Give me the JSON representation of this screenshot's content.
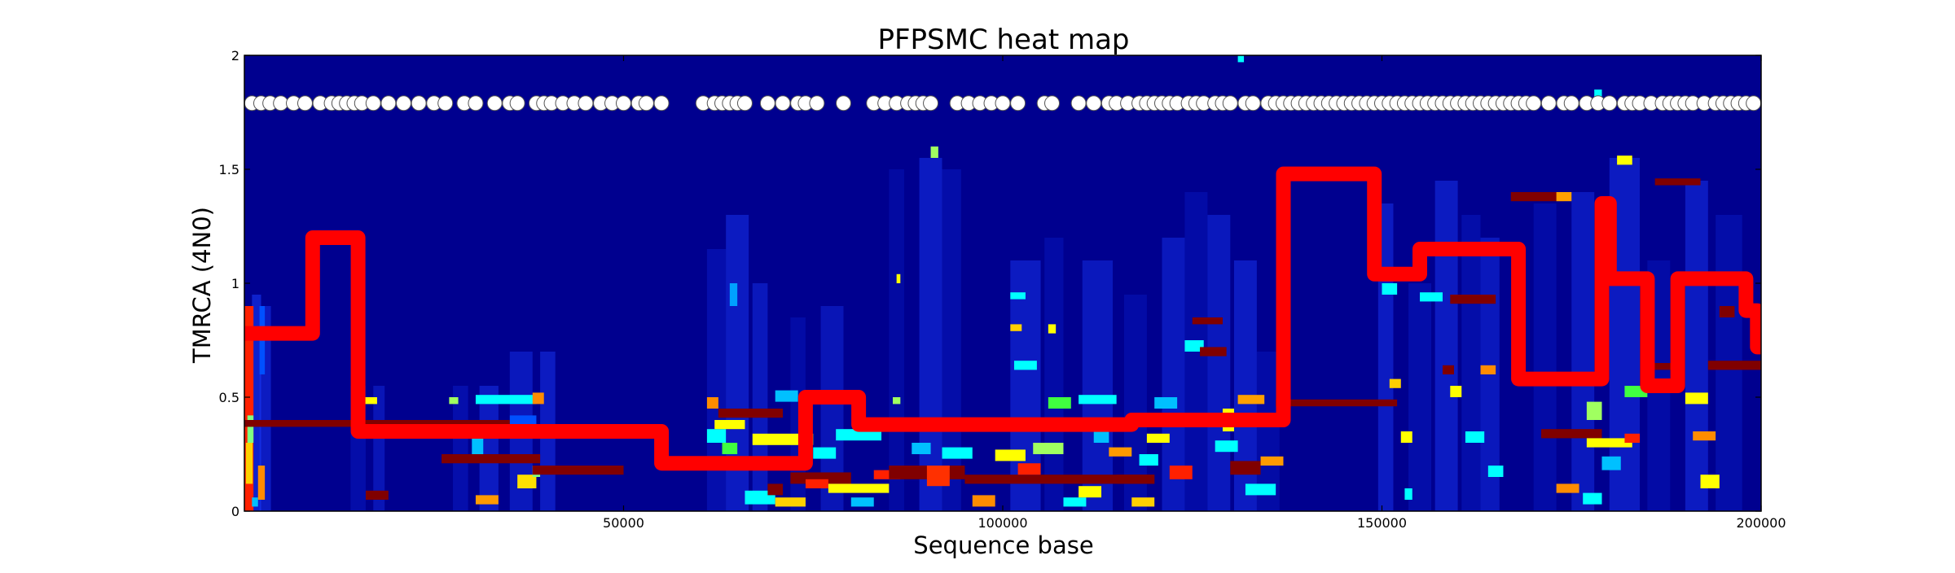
{
  "chart_data": {
    "type": "heatmap",
    "title": "PFPSMC heat map",
    "xlabel": "Sequence base",
    "ylabel": "TMRCA (4N0)",
    "xlim": [
      0,
      200000
    ],
    "ylim": [
      0,
      2
    ],
    "x_ticks": [
      {
        "value": 50000,
        "label": "50000"
      },
      {
        "value": 100000,
        "label": "100000"
      },
      {
        "value": 150000,
        "label": "150000"
      },
      {
        "value": 200000,
        "label": "200000"
      }
    ],
    "y_ticks": [
      {
        "value": 0,
        "label": "0"
      },
      {
        "value": 0.5,
        "label": "0.5"
      },
      {
        "value": 1,
        "label": "1"
      },
      {
        "value": 1.5,
        "label": "1.5"
      },
      {
        "value": 2,
        "label": "2"
      }
    ],
    "colors": {
      "heatmap_background": "#00008f",
      "tmrca_line": "#ff0000",
      "site_markers": "#ffffff",
      "hot": "#800000"
    },
    "grid": false,
    "legend": "none",
    "tmrca_path": [
      [
        0,
        0.78
      ],
      [
        9000,
        0.78
      ],
      [
        9000,
        1.2
      ],
      [
        15000,
        1.2
      ],
      [
        15000,
        0.35
      ],
      [
        55000,
        0.35
      ],
      [
        55000,
        0.21
      ],
      [
        74000,
        0.21
      ],
      [
        74000,
        0.5
      ],
      [
        81000,
        0.5
      ],
      [
        81000,
        0.38
      ],
      [
        117000,
        0.38
      ],
      [
        117000,
        0.4
      ],
      [
        137000,
        0.4
      ],
      [
        137000,
        1.48
      ],
      [
        149000,
        1.48
      ],
      [
        149000,
        1.04
      ],
      [
        155000,
        1.04
      ],
      [
        155000,
        1.15
      ],
      [
        168000,
        1.15
      ],
      [
        168000,
        0.58
      ],
      [
        179000,
        0.58
      ],
      [
        179000,
        1.35
      ],
      [
        180000,
        1.35
      ],
      [
        180000,
        1.02
      ],
      [
        185000,
        1.02
      ],
      [
        185000,
        0.55
      ],
      [
        189000,
        0.55
      ],
      [
        189000,
        1.02
      ],
      [
        198000,
        1.02
      ],
      [
        198000,
        0.88
      ],
      [
        199500,
        0.88
      ],
      [
        199500,
        0.72
      ],
      [
        200000,
        0.72
      ]
    ],
    "site_markers_y": 1.79,
    "site_positions": [
      1000,
      2200,
      3400,
      4800,
      6500,
      8000,
      10000,
      11500,
      12500,
      13500,
      14500,
      15500,
      17000,
      19000,
      21000,
      23000,
      25000,
      26500,
      29000,
      30500,
      33000,
      35000,
      36000,
      38500,
      39500,
      40500,
      42000,
      43500,
      45000,
      47000,
      48500,
      50000,
      52000,
      53000,
      55000,
      60500,
      62000,
      63000,
      64000,
      65000,
      66000,
      69000,
      71000,
      73000,
      74000,
      75500,
      79000,
      83000,
      84500,
      86000,
      87500,
      88500,
      89500,
      90500,
      94000,
      95500,
      97000,
      98500,
      100000,
      102000,
      105500,
      106500,
      110000,
      112000,
      114000,
      115000,
      116500,
      118000,
      119000,
      120000,
      121000,
      122000,
      123000,
      124500,
      125500,
      126500,
      128000,
      129000,
      130000,
      132000,
      133000,
      135000,
      136000,
      137000,
      138000,
      139000,
      140000,
      141000,
      142000,
      143000,
      144000,
      145000,
      146000,
      147000,
      148000,
      149000,
      150000,
      151000,
      152000,
      153000,
      154000,
      155000,
      156000,
      157000,
      158000,
      159000,
      160000,
      161000,
      162000,
      163000,
      164000,
      165000,
      166000,
      167000,
      168000,
      169000,
      170000,
      172000,
      174000,
      175000,
      177000,
      178500,
      180000,
      182000,
      183000,
      184000,
      185500,
      187000,
      188000,
      189000,
      190000,
      191000,
      192500,
      194000,
      195000,
      196000,
      197000,
      198000,
      199000
    ],
    "column_streaks": [
      [
        1000,
        1200,
        0.0,
        0.95,
        "#1a3cff",
        0.55
      ],
      [
        2000,
        1500,
        0.0,
        0.9,
        "#1a3cff",
        0.45
      ],
      [
        14000,
        2000,
        0.0,
        0.55,
        "#0a20d0",
        0.4
      ],
      [
        17000,
        1500,
        0.0,
        0.55,
        "#1a3cff",
        0.35
      ],
      [
        27500,
        2000,
        0.0,
        0.55,
        "#0a20d0",
        0.45
      ],
      [
        31000,
        2500,
        0.0,
        0.55,
        "#1a3cff",
        0.45
      ],
      [
        35000,
        3000,
        0.0,
        0.7,
        "#1a3cff",
        0.4
      ],
      [
        39000,
        2000,
        0.0,
        0.7,
        "#1a3cff",
        0.45
      ],
      [
        61000,
        2500,
        0.0,
        1.15,
        "#0a20d0",
        0.45
      ],
      [
        63500,
        3000,
        0.0,
        1.3,
        "#1a3cff",
        0.45
      ],
      [
        67000,
        2000,
        0.0,
        1.0,
        "#1a3cff",
        0.4
      ],
      [
        72000,
        2000,
        0.0,
        0.85,
        "#0a20d0",
        0.35
      ],
      [
        76000,
        3000,
        0.0,
        0.9,
        "#1a3cff",
        0.35
      ],
      [
        85000,
        2000,
        0.0,
        1.5,
        "#0a20d0",
        0.3
      ],
      [
        89000,
        3000,
        0.0,
        1.55,
        "#1a3cff",
        0.45
      ],
      [
        92000,
        2500,
        0.0,
        1.5,
        "#0a20d0",
        0.4
      ],
      [
        101000,
        4000,
        0.0,
        1.1,
        "#1a3cff",
        0.45
      ],
      [
        105500,
        2500,
        0.0,
        1.2,
        "#0a20d0",
        0.35
      ],
      [
        110500,
        4000,
        0.0,
        1.1,
        "#1a3cff",
        0.4
      ],
      [
        116000,
        3000,
        0.0,
        0.95,
        "#0a20d0",
        0.35
      ],
      [
        121000,
        3000,
        0.0,
        1.2,
        "#1a3cff",
        0.4
      ],
      [
        124000,
        3000,
        0.0,
        1.4,
        "#0a20d0",
        0.35
      ],
      [
        127000,
        3000,
        0.0,
        1.3,
        "#1a3cff",
        0.4
      ],
      [
        130500,
        3000,
        0.0,
        1.1,
        "#1a3cff",
        0.45
      ],
      [
        133500,
        3000,
        0.0,
        0.7,
        "#0a20d0",
        0.35
      ],
      [
        149500,
        2000,
        0.0,
        1.35,
        "#1a3cff",
        0.45
      ],
      [
        153500,
        3000,
        0.0,
        1.0,
        "#0a20d0",
        0.4
      ],
      [
        157000,
        3000,
        0.0,
        1.45,
        "#1a3cff",
        0.45
      ],
      [
        160500,
        2500,
        0.0,
        1.3,
        "#0a20d0",
        0.4
      ],
      [
        163000,
        2500,
        0.0,
        1.2,
        "#1a3cff",
        0.4
      ],
      [
        170000,
        3000,
        0.0,
        1.35,
        "#0a20d0",
        0.35
      ],
      [
        175000,
        3000,
        0.0,
        1.4,
        "#1a3cff",
        0.4
      ],
      [
        180000,
        4000,
        0.0,
        1.55,
        "#1a3cff",
        0.45
      ],
      [
        185000,
        3000,
        0.0,
        1.1,
        "#0a20d0",
        0.35
      ],
      [
        190000,
        3000,
        0.0,
        1.45,
        "#1a3cff",
        0.45
      ],
      [
        194000,
        3500,
        0.0,
        1.3,
        "#0a20d0",
        0.4
      ]
    ],
    "cells": [
      [
        0,
        1200,
        0.0,
        0.9,
        "#ff2000"
      ],
      [
        200,
        900,
        0.12,
        0.3,
        "#ffd000"
      ],
      [
        400,
        800,
        0.3,
        0.42,
        "#80ff80"
      ],
      [
        1000,
        800,
        0.02,
        0.06,
        "#00c0ff"
      ],
      [
        1800,
        900,
        0.05,
        0.2,
        "#ff8c00"
      ],
      [
        2000,
        700,
        0.6,
        0.9,
        "#0050ff"
      ],
      [
        0,
        37000,
        0.37,
        0.4,
        "#800000"
      ],
      [
        15000,
        2500,
        0.47,
        0.5,
        "#ffff00"
      ],
      [
        16000,
        3000,
        0.05,
        0.09,
        "#800000"
      ],
      [
        26000,
        13000,
        0.21,
        0.25,
        "#800000"
      ],
      [
        27000,
        1200,
        0.47,
        0.5,
        "#a0ff60"
      ],
      [
        30500,
        8000,
        0.47,
        0.51,
        "#00ffff"
      ],
      [
        30000,
        1500,
        0.25,
        0.32,
        "#00c0ff"
      ],
      [
        30500,
        3000,
        0.03,
        0.07,
        "#ff9a00"
      ],
      [
        35000,
        3500,
        0.37,
        0.42,
        "#0050ff"
      ],
      [
        36000,
        2500,
        0.1,
        0.16,
        "#ffe000"
      ],
      [
        38000,
        1000,
        0.15,
        0.2,
        "#80ff80"
      ],
      [
        38000,
        1500,
        0.47,
        0.52,
        "#ff8c00"
      ],
      [
        38000,
        12000,
        0.16,
        0.2,
        "#800000"
      ],
      [
        61000,
        1500,
        0.45,
        0.5,
        "#ff8c00"
      ],
      [
        61000,
        2500,
        0.3,
        0.36,
        "#00ffff"
      ],
      [
        62500,
        8500,
        0.41,
        0.45,
        "#800000"
      ],
      [
        62000,
        4000,
        0.36,
        0.4,
        "#ffff00"
      ],
      [
        63000,
        2000,
        0.25,
        0.3,
        "#40ff40"
      ],
      [
        64000,
        1000,
        0.9,
        1.0,
        "#00a0ff"
      ],
      [
        66000,
        3500,
        0.2,
        0.24,
        "#ffa000"
      ],
      [
        66000,
        4000,
        0.03,
        0.09,
        "#00ffff"
      ],
      [
        67000,
        8000,
        0.29,
        0.34,
        "#ffff00"
      ],
      [
        69000,
        2000,
        0.07,
        0.12,
        "#800000"
      ],
      [
        70000,
        3000,
        0.48,
        0.53,
        "#00c0ff"
      ],
      [
        70000,
        4000,
        0.02,
        0.06,
        "#ffd000"
      ],
      [
        72000,
        8000,
        0.12,
        0.17,
        "#800000"
      ],
      [
        74000,
        3000,
        0.1,
        0.14,
        "#ff2000"
      ],
      [
        75000,
        3000,
        0.23,
        0.28,
        "#00ffff"
      ],
      [
        77000,
        8000,
        0.08,
        0.12,
        "#ffff00"
      ],
      [
        78000,
        6000,
        0.31,
        0.36,
        "#00ffff"
      ],
      [
        80000,
        3000,
        0.02,
        0.06,
        "#00c0ff"
      ],
      [
        83000,
        3500,
        0.14,
        0.18,
        "#ff2000"
      ],
      [
        85000,
        10000,
        0.14,
        0.2,
        "#800000"
      ],
      [
        85500,
        1000,
        0.47,
        0.5,
        "#a0ff60"
      ],
      [
        86000,
        500,
        1.0,
        1.04,
        "#ffff00"
      ],
      [
        88000,
        2500,
        0.25,
        0.3,
        "#00c0ff"
      ],
      [
        90000,
        3000,
        0.11,
        0.2,
        "#ff3000"
      ],
      [
        90500,
        1000,
        1.55,
        1.6,
        "#a0ff60"
      ],
      [
        92000,
        4000,
        0.23,
        0.28,
        "#00ffff"
      ],
      [
        95000,
        25000,
        0.12,
        0.16,
        "#800000"
      ],
      [
        96000,
        3000,
        0.02,
        0.07,
        "#ff8c00"
      ],
      [
        99000,
        4000,
        0.22,
        0.27,
        "#ffff00"
      ],
      [
        101000,
        2000,
        0.93,
        0.96,
        "#00ffff"
      ],
      [
        101000,
        1500,
        0.79,
        0.82,
        "#ffd000"
      ],
      [
        101500,
        3000,
        0.62,
        0.66,
        "#00ffff"
      ],
      [
        102000,
        3000,
        0.16,
        0.21,
        "#ff2000"
      ],
      [
        104000,
        4000,
        0.25,
        0.3,
        "#a0ff60"
      ],
      [
        106000,
        1000,
        0.78,
        0.82,
        "#ffff00"
      ],
      [
        106000,
        3000,
        0.45,
        0.5,
        "#40ff40"
      ],
      [
        108000,
        3000,
        0.02,
        0.06,
        "#00ffff"
      ],
      [
        110000,
        3000,
        0.06,
        0.11,
        "#ffff00"
      ],
      [
        110000,
        5000,
        0.47,
        0.51,
        "#00ffff"
      ],
      [
        112000,
        2000,
        0.3,
        0.35,
        "#00c0ff"
      ],
      [
        114000,
        3000,
        0.24,
        0.28,
        "#ff9a00"
      ],
      [
        115000,
        5000,
        0.12,
        0.16,
        "#800000"
      ],
      [
        117000,
        3000,
        0.02,
        0.06,
        "#ffd000"
      ],
      [
        118000,
        2500,
        0.2,
        0.25,
        "#00ffff"
      ],
      [
        119000,
        3000,
        0.3,
        0.34,
        "#ffff00"
      ],
      [
        120000,
        3000,
        0.45,
        0.5,
        "#00c0ff"
      ],
      [
        122000,
        3000,
        0.14,
        0.2,
        "#ff2000"
      ],
      [
        124000,
        2500,
        0.7,
        0.75,
        "#00ffff"
      ],
      [
        125000,
        4000,
        0.82,
        0.85,
        "#800000"
      ],
      [
        126000,
        3500,
        0.68,
        0.72,
        "#800000"
      ],
      [
        128000,
        3000,
        0.26,
        0.31,
        "#00ffff"
      ],
      [
        129000,
        1500,
        0.35,
        0.45,
        "#ffff00"
      ],
      [
        130000,
        4000,
        0.16,
        0.22,
        "#800000"
      ],
      [
        131000,
        3500,
        0.47,
        0.51,
        "#ffa000"
      ],
      [
        132000,
        4000,
        0.07,
        0.12,
        "#00ffff"
      ],
      [
        134000,
        3000,
        0.2,
        0.24,
        "#ff9a00"
      ],
      [
        136000,
        16000,
        0.46,
        0.49,
        "#800000"
      ],
      [
        150000,
        2000,
        0.95,
        1.0,
        "#00ffff"
      ],
      [
        151000,
        1500,
        0.54,
        0.58,
        "#ffd000"
      ],
      [
        152500,
        1500,
        0.3,
        0.35,
        "#ffff00"
      ],
      [
        153000,
        1000,
        0.05,
        0.1,
        "#00ffff"
      ],
      [
        155000,
        3000,
        0.92,
        0.96,
        "#00ffff"
      ],
      [
        158000,
        1500,
        0.6,
        0.64,
        "#800000"
      ],
      [
        159000,
        6000,
        0.91,
        0.95,
        "#800000"
      ],
      [
        159000,
        1500,
        0.5,
        0.55,
        "#ffff00"
      ],
      [
        161000,
        2500,
        0.3,
        0.35,
        "#00ffff"
      ],
      [
        163000,
        2000,
        0.6,
        0.64,
        "#ff8c00"
      ],
      [
        164000,
        2000,
        0.15,
        0.2,
        "#00ffff"
      ],
      [
        167000,
        7000,
        1.36,
        1.4,
        "#800000"
      ],
      [
        173000,
        2000,
        1.36,
        1.4,
        "#ffa000"
      ],
      [
        171000,
        8000,
        0.32,
        0.36,
        "#800000"
      ],
      [
        173000,
        3000,
        0.08,
        0.12,
        "#ff8c00"
      ],
      [
        176500,
        2500,
        0.03,
        0.08,
        "#00ffff"
      ],
      [
        177000,
        6000,
        0.28,
        0.32,
        "#ffff00"
      ],
      [
        177000,
        2000,
        0.4,
        0.48,
        "#a0ff60"
      ],
      [
        179000,
        2500,
        0.18,
        0.24,
        "#00c0ff"
      ],
      [
        181000,
        2000,
        1.52,
        1.56,
        "#ffff00"
      ],
      [
        182000,
        2000,
        0.3,
        0.34,
        "#ff2000"
      ],
      [
        182000,
        3000,
        0.5,
        0.55,
        "#40ff40"
      ],
      [
        185000,
        4000,
        0.62,
        0.65,
        "#800000"
      ],
      [
        186000,
        6000,
        1.43,
        1.46,
        "#800000"
      ],
      [
        190000,
        3000,
        0.47,
        0.52,
        "#ffff00"
      ],
      [
        191000,
        3000,
        0.31,
        0.35,
        "#ff8c00"
      ],
      [
        192000,
        2500,
        0.1,
        0.16,
        "#ffff00"
      ],
      [
        193000,
        8000,
        0.62,
        0.66,
        "#800000"
      ],
      [
        194500,
        2000,
        0.85,
        0.9,
        "#800000"
      ],
      [
        178000,
        1000,
        1.8,
        1.85,
        "#00ffff"
      ],
      [
        131000,
        800,
        1.97,
        2.0,
        "#00ffff"
      ]
    ]
  }
}
